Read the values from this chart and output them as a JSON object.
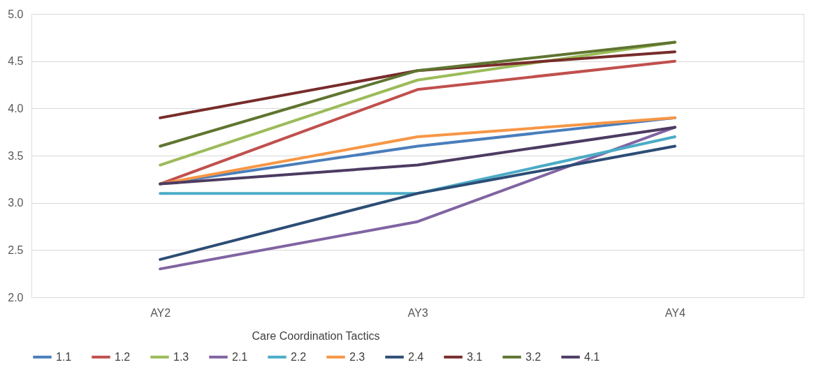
{
  "chart_data": {
    "type": "line",
    "legend_title": "Care Coordination Tactics",
    "categories": [
      "AY2",
      "AY3",
      "AY4"
    ],
    "ylim": [
      2.0,
      5.0
    ],
    "yticks": [
      {
        "value": 2,
        "label": "2.0"
      },
      {
        "value": 2.5,
        "label": "2.5"
      },
      {
        "value": 3,
        "label": "3.0"
      },
      {
        "value": 3.5,
        "label": "3.5"
      },
      {
        "value": 4,
        "label": "4.0"
      },
      {
        "value": 4.5,
        "label": "4.5"
      },
      {
        "value": 5,
        "label": "5.0"
      }
    ],
    "grid": "y",
    "legend": "bottom",
    "marker": "none",
    "line_style": "solid",
    "series": [
      {
        "name": "1.1",
        "color": "#4a7ebb",
        "values": [
          3.2,
          3.6,
          3.9
        ]
      },
      {
        "name": "1.2",
        "color": "#c0504d",
        "values": [
          3.2,
          4.2,
          4.5
        ]
      },
      {
        "name": "1.3",
        "color": "#9bbb59",
        "values": [
          3.4,
          4.3,
          4.7
        ]
      },
      {
        "name": "2.1",
        "color": "#8064a2",
        "values": [
          2.3,
          2.8,
          3.8
        ]
      },
      {
        "name": "2.2",
        "color": "#4bacc6",
        "values": [
          3.1,
          3.1,
          3.7
        ]
      },
      {
        "name": "2.3",
        "color": "#f79646",
        "values": [
          3.2,
          3.7,
          3.9
        ]
      },
      {
        "name": "2.4",
        "color": "#2c4d75",
        "values": [
          2.4,
          3.1,
          3.6
        ]
      },
      {
        "name": "3.1",
        "color": "#772c2a",
        "values": [
          3.9,
          4.4,
          4.6
        ]
      },
      {
        "name": "3.2",
        "color": "#5f7530",
        "values": [
          3.6,
          4.4,
          4.7
        ]
      },
      {
        "name": "4.1",
        "color": "#4d3b62",
        "values": [
          3.2,
          3.4,
          3.8
        ]
      }
    ]
  }
}
